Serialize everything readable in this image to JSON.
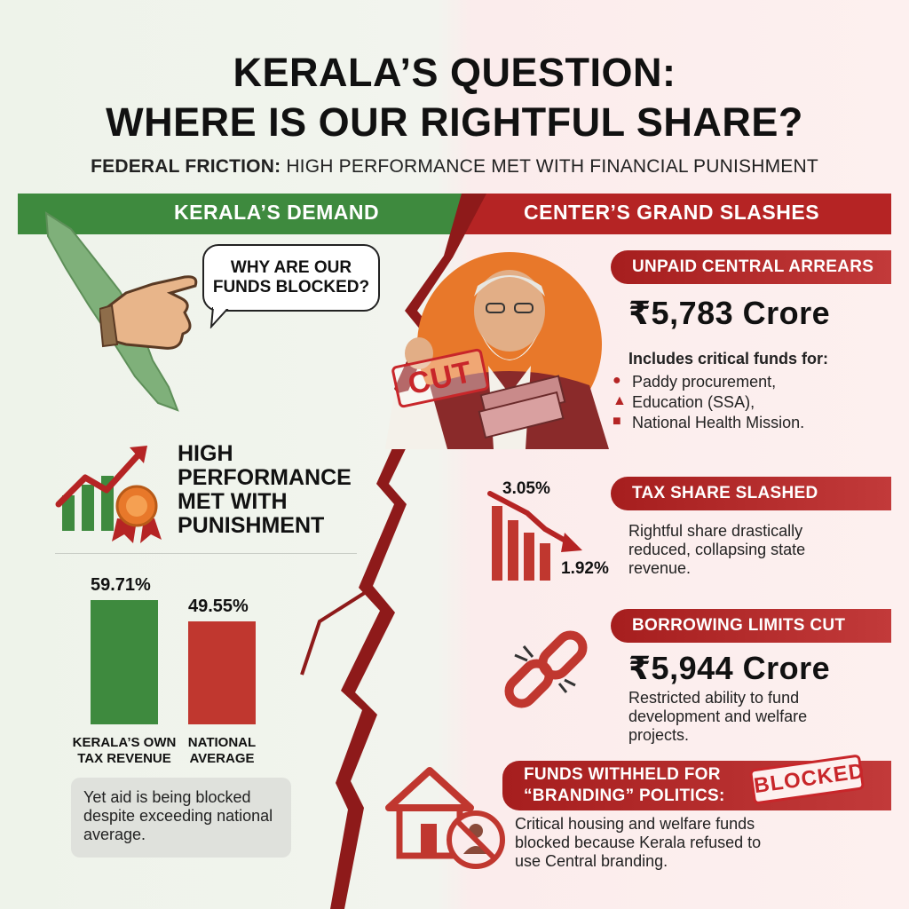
{
  "header": {
    "title_line1": "KERALA’S QUESTION:",
    "title_line2": "WHERE IS OUR RIGHTFUL SHARE?",
    "subtitle_bold": "FEDERAL FRICTION:",
    "subtitle_rest": " HIGH PERFORMANCE MET WITH FINANCIAL PUNISHMENT"
  },
  "left": {
    "band_label": "KERALA’S DEMAND",
    "bubble_line1": "WHY ARE OUR",
    "bubble_line2": "FUNDS BLOCKED?",
    "performance_title": [
      "HIGH",
      "PERFORMANCE",
      "MET WITH",
      "PUNISHMENT"
    ],
    "note": "Yet aid is being blocked despite exceeding national average.",
    "bar_labels": [
      [
        "KERALA’S OWN",
        "TAX REVENUE"
      ],
      [
        "NATIONAL",
        "AVERAGE"
      ]
    ],
    "bar_value_labels": [
      "59.71%",
      "49.55%"
    ]
  },
  "chart_data": {
    "type": "bar",
    "categories": [
      "KERALA’S OWN TAX REVENUE",
      "NATIONAL AVERAGE"
    ],
    "values": [
      59.71,
      49.55
    ],
    "ylim": [
      0,
      70
    ],
    "colors": [
      "#3e8a3e",
      "#c0372f"
    ]
  },
  "right": {
    "band_label": "CENTER’S GRAND SLASHES",
    "stamp_cut": "CUT",
    "arrears": {
      "tag": "UNPAID CENTRAL ARREARS",
      "amount": "₹5,783 Crore",
      "intro": "Includes critical funds for:",
      "items": [
        "Paddy procurement,",
        "Education (SSA),",
        "National Health Mission."
      ],
      "item_icons": [
        "bowl-icon",
        "student-icon",
        "hospital-icon"
      ]
    },
    "tax": {
      "tag": "TAX SHARE SLASHED",
      "from": "3.05%",
      "to": "1.92%",
      "text": [
        "Rightful share drastically",
        "reduced, collapsing state",
        "revenue."
      ]
    },
    "borrowing": {
      "tag": "BORROWING LIMITS CUT",
      "amount": "₹5,944 Crore",
      "text": [
        "Restricted ability to fund",
        "development and welfare",
        "projects."
      ]
    },
    "branding": {
      "tag_line1": "FUNDS WITHHELD FOR",
      "tag_line2": "“BRANDING” POLITICS:",
      "stamp": "BLOCKED",
      "text": [
        "Critical housing and welfare funds",
        "blocked because Kerala refused to",
        "use Central branding."
      ]
    }
  },
  "colors": {
    "green": "#3e8a3e",
    "red": "#b52424",
    "orange": "#e8782a"
  }
}
